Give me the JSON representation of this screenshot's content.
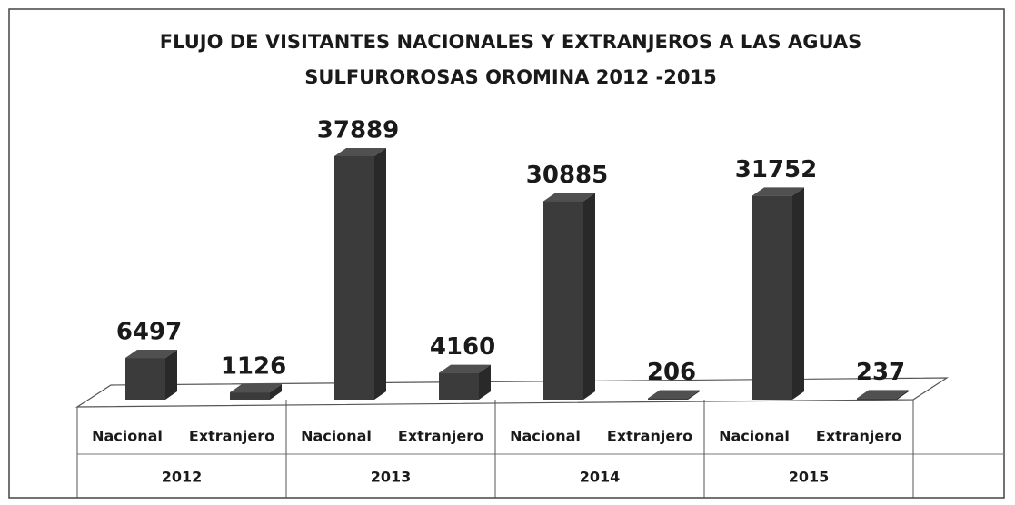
{
  "chart_data": {
    "type": "bar3d",
    "title": [
      "FLUJO  DE VISITANTES NACIONALES Y EXTRANJEROS A LAS AGUAS",
      "SULFUROROSAS OROMINA 2012 -2015"
    ],
    "categories": [
      "Nacional",
      "Extranjero",
      "Nacional",
      "Extranjero",
      "Nacional",
      "Extranjero",
      "Nacional",
      "Extranjero"
    ],
    "groups": [
      "2012",
      "2013",
      "2014",
      "2015"
    ],
    "values": [
      6497,
      1126,
      37889,
      4160,
      30885,
      206,
      31752,
      237
    ],
    "color": "#3b3b3b"
  }
}
